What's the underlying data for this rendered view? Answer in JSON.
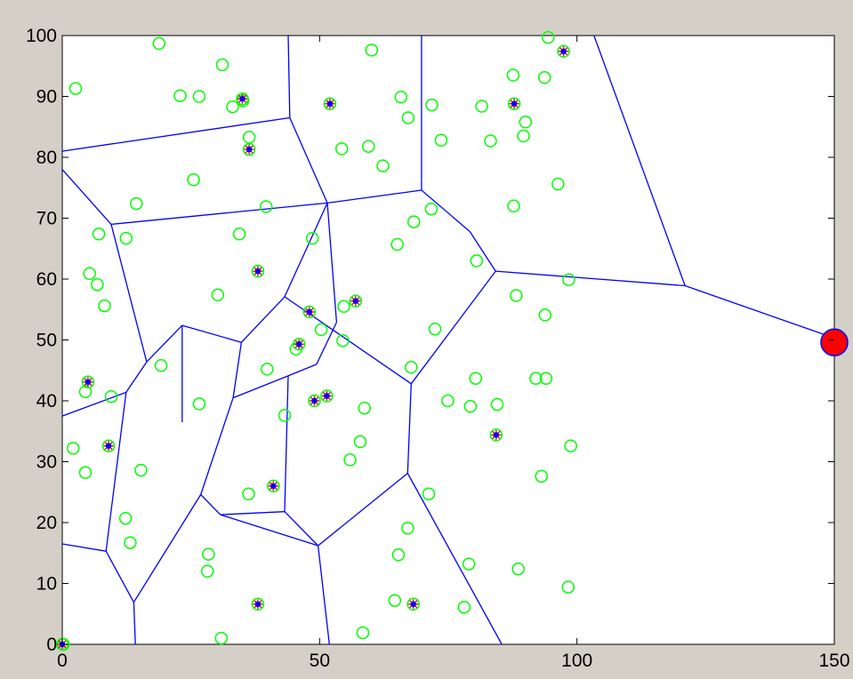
{
  "chart_data": {
    "type": "scatter",
    "title": "",
    "xlabel": "",
    "ylabel": "",
    "xlim": [
      0,
      150
    ],
    "ylim": [
      0,
      100
    ],
    "xticks": [
      0,
      50,
      100,
      150
    ],
    "yticks": [
      0,
      10,
      20,
      30,
      40,
      50,
      60,
      70,
      80,
      90,
      100
    ],
    "xtick_labels": [
      "0",
      "50",
      "100",
      "150"
    ],
    "ytick_labels": [
      "0",
      "10",
      "20",
      "30",
      "40",
      "50",
      "60",
      "70",
      "80",
      "90",
      "100"
    ],
    "grid": false,
    "legend": "none",
    "colors": {
      "nodes": "#00ff00",
      "cell_heads": "#0000ff",
      "head_cross": "#ff0000",
      "edges": "#0000ff",
      "sink": "#ff0000",
      "sink_edge": "#0000ff",
      "axes_bg": "#ffffff",
      "figure_bg": "#d4d0c8"
    },
    "nodes": [
      [
        0.2,
        0
      ],
      [
        2.1,
        32.2
      ],
      [
        4.5,
        28.2
      ],
      [
        4.5,
        41.5
      ],
      [
        8.2,
        55.6
      ],
      [
        6.8,
        59.1
      ],
      [
        5.3,
        60.9
      ],
      [
        7.1,
        67.4
      ],
      [
        2.6,
        91.3
      ],
      [
        9.5,
        40.7
      ],
      [
        12.3,
        20.7
      ],
      [
        13.2,
        16.7
      ],
      [
        14.4,
        72.4
      ],
      [
        15.3,
        28.6
      ],
      [
        12.4,
        66.7
      ],
      [
        18.8,
        98.7
      ],
      [
        19.2,
        45.8
      ],
      [
        22.9,
        90.1
      ],
      [
        25.5,
        76.3
      ],
      [
        26.6,
        90
      ],
      [
        26.6,
        39.5
      ],
      [
        28.2,
        12
      ],
      [
        28.4,
        14.8
      ],
      [
        30.2,
        57.4
      ],
      [
        30.9,
        1
      ],
      [
        31.1,
        95.2
      ],
      [
        33.1,
        88.3
      ],
      [
        34.4,
        67.4
      ],
      [
        35.1,
        89.3
      ],
      [
        36.3,
        83.3
      ],
      [
        36.2,
        24.7
      ],
      [
        39.8,
        45.2
      ],
      [
        39.6,
        71.9
      ],
      [
        43.2,
        37.6
      ],
      [
        45.4,
        48.5
      ],
      [
        48.6,
        66.7
      ],
      [
        50.3,
        51.7
      ],
      [
        54.5,
        49.9
      ],
      [
        54.3,
        81.4
      ],
      [
        54.7,
        55.5
      ],
      [
        55.9,
        30.3
      ],
      [
        57.9,
        33.3
      ],
      [
        58.4,
        1.9
      ],
      [
        58.7,
        38.8
      ],
      [
        59.5,
        81.8
      ],
      [
        60.1,
        97.6
      ],
      [
        62.3,
        78.6
      ],
      [
        65.1,
        65.7
      ],
      [
        64.6,
        7.2
      ],
      [
        65.3,
        14.7
      ],
      [
        65.8,
        89.9
      ],
      [
        67.1,
        19.1
      ],
      [
        67.2,
        86.5
      ],
      [
        67.8,
        45.5
      ],
      [
        68.3,
        69.4
      ],
      [
        71.2,
        24.7
      ],
      [
        71.8,
        88.6
      ],
      [
        71.7,
        71.5
      ],
      [
        72.4,
        51.8
      ],
      [
        73.6,
        82.8
      ],
      [
        74.9,
        40
      ],
      [
        78.1,
        6.1
      ],
      [
        79,
        13.2
      ],
      [
        79.3,
        39.1
      ],
      [
        80.3,
        43.7
      ],
      [
        80.5,
        63
      ],
      [
        81.5,
        88.4
      ],
      [
        83.2,
        82.7
      ],
      [
        84.5,
        39.4
      ],
      [
        87.6,
        93.5
      ],
      [
        87.7,
        72
      ],
      [
        88.2,
        57.3
      ],
      [
        88.6,
        12.4
      ],
      [
        89.6,
        83.5
      ],
      [
        90,
        85.8
      ],
      [
        92,
        43.7
      ],
      [
        93.1,
        27.6
      ],
      [
        93.7,
        93.1
      ],
      [
        93.8,
        54.1
      ],
      [
        94,
        43.7
      ],
      [
        94.4,
        99.7
      ],
      [
        96.3,
        75.6
      ],
      [
        98.3,
        9.4
      ],
      [
        98.4,
        59.9
      ],
      [
        98.8,
        32.6
      ]
    ],
    "cell_heads": [
      [
        0,
        0
      ],
      [
        5,
        43.1
      ],
      [
        9,
        32.6
      ],
      [
        41,
        26
      ],
      [
        68.2,
        6.6
      ],
      [
        35,
        89.6
      ],
      [
        36.3,
        81.3
      ],
      [
        38,
        61.3
      ],
      [
        38,
        6.6
      ],
      [
        52,
        88.8
      ],
      [
        57,
        56.4
      ],
      [
        48,
        54.6
      ],
      [
        46,
        49.3
      ],
      [
        49,
        40
      ],
      [
        51.4,
        40.8
      ],
      [
        84.3,
        34.4
      ],
      [
        87.8,
        88.8
      ],
      [
        97.4,
        97.4
      ]
    ],
    "voronoi_edges": [
      [
        [
          0,
          81
        ],
        [
          44.2,
          86.5
        ]
      ],
      [
        [
          44.2,
          86.5
        ],
        [
          43.9,
          100
        ]
      ],
      [
        [
          44.2,
          86.5
        ],
        [
          51.5,
          72.5
        ]
      ],
      [
        [
          51.5,
          72.5
        ],
        [
          69.8,
          74.6
        ]
      ],
      [
        [
          69.8,
          74.6
        ],
        [
          69.8,
          100
        ]
      ],
      [
        [
          51.5,
          72.5
        ],
        [
          9.5,
          69
        ]
      ],
      [
        [
          9.5,
          69
        ],
        [
          0,
          78
        ]
      ],
      [
        [
          9.5,
          69
        ],
        [
          16.4,
          46.4
        ]
      ],
      [
        [
          16.4,
          46.4
        ],
        [
          23.3,
          52.4
        ]
      ],
      [
        [
          23.3,
          52.4
        ],
        [
          23.3,
          36.5
        ]
      ],
      [
        [
          16.4,
          46.4
        ],
        [
          12.4,
          41.4
        ]
      ],
      [
        [
          12.4,
          41.4
        ],
        [
          0,
          37.5
        ]
      ],
      [
        [
          12.4,
          41.4
        ],
        [
          8.5,
          15.3
        ]
      ],
      [
        [
          8.5,
          15.3
        ],
        [
          0,
          16.5
        ]
      ],
      [
        [
          8.5,
          15.3
        ],
        [
          13.9,
          6.9
        ]
      ],
      [
        [
          13.9,
          6.9
        ],
        [
          14.2,
          0
        ]
      ],
      [
        [
          13.9,
          6.9
        ],
        [
          26.9,
          24.6
        ]
      ],
      [
        [
          26.9,
          24.6
        ],
        [
          33.2,
          40.5
        ]
      ],
      [
        [
          26.9,
          24.6
        ],
        [
          30.7,
          21.3
        ]
      ],
      [
        [
          30.7,
          21.3
        ],
        [
          49.7,
          16.2
        ]
      ],
      [
        [
          49.7,
          16.2
        ],
        [
          51.9,
          0
        ]
      ],
      [
        [
          49.7,
          16.2
        ],
        [
          67.1,
          28.1
        ]
      ],
      [
        [
          67.1,
          28.1
        ],
        [
          85.4,
          0
        ]
      ],
      [
        [
          67.1,
          28.1
        ],
        [
          67.8,
          42.8
        ]
      ],
      [
        [
          67.8,
          42.8
        ],
        [
          84.2,
          61.3
        ]
      ],
      [
        [
          84.2,
          61.3
        ],
        [
          79.2,
          67.8
        ]
      ],
      [
        [
          79.2,
          67.8
        ],
        [
          69.8,
          74.6
        ]
      ],
      [
        [
          84.2,
          61.3
        ],
        [
          121,
          58.9
        ]
      ],
      [
        [
          121,
          58.9
        ],
        [
          103.3,
          100
        ]
      ],
      [
        [
          121,
          58.9
        ],
        [
          150,
          50.3
        ]
      ],
      [
        [
          67.8,
          42.8
        ],
        [
          43.2,
          57.1
        ]
      ],
      [
        [
          43.2,
          57.1
        ],
        [
          51.5,
          72.5
        ]
      ],
      [
        [
          43.2,
          57.1
        ],
        [
          34.8,
          49.6
        ]
      ],
      [
        [
          34.8,
          49.6
        ],
        [
          23.3,
          52.4
        ]
      ],
      [
        [
          34.8,
          49.6
        ],
        [
          33.2,
          40.5
        ]
      ],
      [
        [
          33.2,
          40.5
        ],
        [
          43.9,
          44.1
        ]
      ],
      [
        [
          43.9,
          44.1
        ],
        [
          49.4,
          46
        ]
      ],
      [
        [
          43.9,
          44.1
        ],
        [
          43.2,
          21.8
        ]
      ],
      [
        [
          43.2,
          21.8
        ],
        [
          49.7,
          16.2
        ]
      ],
      [
        [
          43.2,
          21.8
        ],
        [
          30.7,
          21.3
        ]
      ],
      [
        [
          49.4,
          46
        ],
        [
          53.3,
          52.9
        ]
      ],
      [
        [
          53.3,
          52.9
        ],
        [
          51.5,
          72.5
        ]
      ]
    ],
    "sink": [
      150,
      49.6
    ]
  }
}
